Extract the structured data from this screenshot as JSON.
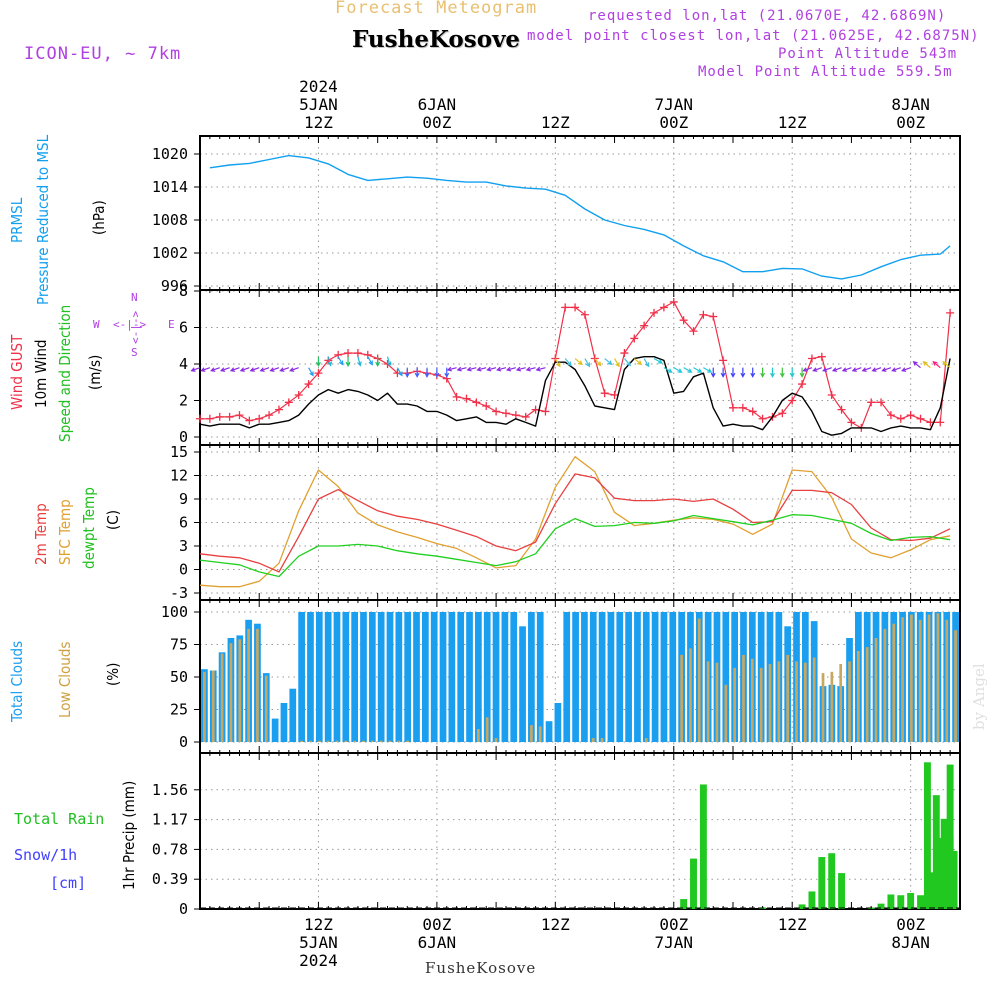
{
  "header": {
    "product": "Forecast Meteogram",
    "location": "FusheKosove",
    "model": "ICON-EU, ~ 7km",
    "requested": "requested lon,lat (21.0670E, 42.6869N)",
    "closest": "model point closest lon,lat (21.0625E, 42.6875N)",
    "point_altitude": "Point Altitude 543m",
    "model_altitude": "Model Point Altitude 559.5m",
    "footer_location": "FusheKosove",
    "credit": "by Angel"
  },
  "time_axis": {
    "top": [
      {
        "hour": 12,
        "lines": [
          "2024",
          "5JAN",
          "12Z"
        ]
      },
      {
        "hour": 24,
        "lines": [
          "6JAN",
          "00Z"
        ]
      },
      {
        "hour": 36,
        "lines": [
          "12Z"
        ]
      },
      {
        "hour": 48,
        "lines": [
          "7JAN",
          "00Z"
        ]
      },
      {
        "hour": 60,
        "lines": [
          "12Z"
        ]
      },
      {
        "hour": 72,
        "lines": [
          "8JAN",
          "00Z"
        ]
      }
    ],
    "bottom": [
      {
        "hour": 12,
        "lines": [
          "12Z",
          "5JAN",
          "2024"
        ]
      },
      {
        "hour": 24,
        "lines": [
          "00Z",
          "6JAN"
        ]
      },
      {
        "hour": 36,
        "lines": [
          "12Z"
        ]
      },
      {
        "hour": 48,
        "lines": [
          "00Z",
          "7JAN"
        ]
      },
      {
        "hour": 60,
        "lines": [
          "12Z"
        ]
      },
      {
        "hour": 72,
        "lines": [
          "00Z",
          "8JAN"
        ]
      }
    ]
  },
  "panel_labels": {
    "pressure": {
      "name": "PRMSL",
      "desc": "Pressure Reduced to MSL",
      "unit": "(hPa)"
    },
    "wind": {
      "gust": "Wind GUST",
      "wind10": "10m Wind",
      "speed": "Speed and Direction",
      "unit": "(m/s)",
      "compass": {
        "n": "N",
        "s": "S",
        "w": "W",
        "e": "E",
        "arrow_left": "<-|->",
        "arrow_v": "<-|->"
      }
    },
    "temp": {
      "t2m": "2m Temp",
      "sfc": "SFC Temp",
      "dew": "dewpt Temp",
      "unit": "(C)"
    },
    "clouds": {
      "total": "Total Clouds",
      "low": "Low Clouds",
      "unit": "(%)"
    },
    "precip": {
      "rain": "Total  Rain",
      "snow": "Snow/1h",
      "snow_unit": "[cm]",
      "axis": "1hr Precip (mm)"
    }
  },
  "colors": {
    "pressure": "#10a0f0",
    "gust": "#f03048",
    "wind10": "#000000",
    "temp2m": "#e84040",
    "sfc": "#e0a030",
    "dew": "#20d020",
    "total_cloud": "#1a9ff0",
    "low_cloud": "#c8a860",
    "rain": "#20c820",
    "snow": "#4040ff",
    "label_purple": "#b040e0",
    "title_gold": "#e8c070"
  },
  "chart_data": [
    {
      "type": "line",
      "title": "PRMSL Pressure Reduced to MSL",
      "ylabel": "hPa",
      "ylim": [
        996,
        1022
      ],
      "yticks": [
        "1020",
        "1014",
        "1008",
        "1002",
        "996"
      ],
      "x": [
        1,
        3,
        5,
        7,
        9,
        11,
        13,
        15,
        17,
        19,
        21,
        23,
        25,
        27,
        29,
        31,
        33,
        35,
        37,
        39,
        41,
        43,
        45,
        47,
        49,
        51,
        53,
        55,
        57,
        59,
        61,
        63,
        65,
        67,
        69,
        71,
        73,
        75,
        76
      ],
      "values": [
        1017.5,
        1018,
        1018.3,
        1019,
        1019.7,
        1019.3,
        1018.2,
        1016.3,
        1015.2,
        1015.5,
        1015.8,
        1015.6,
        1015.2,
        1014.9,
        1014.9,
        1014.2,
        1013.8,
        1013.6,
        1012.5,
        1010,
        1008,
        1007,
        1006.3,
        1005.3,
        1003.3,
        1001.5,
        1000.4,
        998.6,
        998.6,
        999.2,
        999.1,
        997.8,
        997.3,
        998,
        999.5,
        1000.8,
        1001.6,
        1001.8,
        1003.3
      ]
    },
    {
      "type": "line",
      "title": "Wind GUST / 10m Wind Speed and Direction",
      "ylabel": "m/s",
      "ylim": [
        0,
        8
      ],
      "yticks": [
        "8",
        "6",
        "4",
        "2",
        "0"
      ],
      "x": [
        0,
        1,
        2,
        3,
        4,
        5,
        6,
        7,
        8,
        9,
        10,
        11,
        12,
        13,
        14,
        15,
        16,
        17,
        18,
        19,
        20,
        21,
        22,
        23,
        24,
        25,
        26,
        27,
        28,
        29,
        30,
        31,
        32,
        33,
        34,
        35,
        36,
        37,
        38,
        39,
        40,
        41,
        42,
        43,
        44,
        45,
        46,
        47,
        48,
        49,
        50,
        51,
        52,
        53,
        54,
        55,
        56,
        57,
        58,
        59,
        60,
        61,
        62,
        63,
        64,
        65,
        66,
        67,
        68,
        69,
        70,
        71,
        72,
        73,
        74,
        75,
        76
      ],
      "series": [
        {
          "name": "Wind GUST",
          "values": [
            1,
            1,
            1.1,
            1.1,
            1.2,
            0.9,
            1,
            1.2,
            1.5,
            1.9,
            2.3,
            2.9,
            3.5,
            4.2,
            4.5,
            4.6,
            4.6,
            4.5,
            4.3,
            4,
            3.5,
            3.5,
            3.6,
            3.5,
            3.4,
            3.2,
            2.2,
            2.1,
            1.9,
            1.7,
            1.4,
            1.3,
            1.2,
            1.1,
            1.5,
            1.4,
            4.3,
            7.1,
            7.1,
            6.7,
            4.3,
            2.4,
            2.3,
            4.6,
            5.4,
            6.1,
            6.8,
            7.1,
            7.4,
            6.4,
            5.8,
            6.7,
            6.6,
            4.2,
            1.6,
            1.6,
            1.4,
            1,
            1.1,
            1.3,
            2,
            2.9,
            4.3,
            4.4,
            2.3,
            1.5,
            0.8,
            0.5,
            1.9,
            1.9,
            1.2,
            1,
            1.2,
            1,
            0.8,
            0.8,
            6.8
          ]
        },
        {
          "name": "10m Wind",
          "values": [
            0.7,
            0.6,
            0.7,
            0.7,
            0.7,
            0.5,
            0.7,
            0.7,
            0.8,
            0.9,
            1.2,
            1.8,
            2.3,
            2.6,
            2.4,
            2.6,
            2.5,
            2.3,
            2,
            2.4,
            1.8,
            1.8,
            1.7,
            1.4,
            1.4,
            1.2,
            0.9,
            1,
            1.1,
            0.8,
            0.8,
            0.7,
            1,
            0.8,
            0.6,
            3.1,
            4.1,
            4.1,
            3.7,
            2.8,
            1.7,
            1.6,
            1.5,
            3.7,
            4.3,
            4.4,
            4.4,
            4.2,
            2.4,
            2.5,
            3.3,
            3.5,
            1.6,
            0.6,
            0.7,
            0.6,
            0.6,
            0.4,
            1.1,
            2,
            2.4,
            2.2,
            1.4,
            0.3,
            0.1,
            0.2,
            0.5,
            0.5,
            0.5,
            0.3,
            0.5,
            0.6,
            0.5,
            0.5,
            0.4,
            1.6,
            4.3
          ]
        }
      ]
    },
    {
      "type": "line",
      "title": "2m Temp / SFC Temp / dewpt Temp",
      "ylabel": "C",
      "ylim": [
        -3,
        15
      ],
      "yticks": [
        "15",
        "12",
        "9",
        "6",
        "3",
        "0",
        "-3"
      ],
      "x": [
        0,
        2,
        4,
        6,
        8,
        10,
        12,
        14,
        16,
        18,
        20,
        22,
        24,
        26,
        28,
        30,
        32,
        34,
        36,
        38,
        40,
        42,
        44,
        46,
        48,
        50,
        52,
        54,
        56,
        58,
        60,
        62,
        64,
        66,
        68,
        70,
        72,
        74,
        76
      ],
      "series": [
        {
          "name": "2m Temp",
          "values": [
            2,
            1.7,
            1.5,
            0.8,
            -0.3,
            4.2,
            9,
            10.2,
            8.8,
            7.5,
            6.8,
            6.4,
            5.8,
            5,
            4.2,
            3,
            2.4,
            3.5,
            8.4,
            12.2,
            11.7,
            9.1,
            8.8,
            8.8,
            9,
            8.7,
            9,
            7.7,
            6,
            6.1,
            10.1,
            10.1,
            9.8,
            8.3,
            5.3,
            3.8,
            3.7,
            4,
            5.2
          ]
        },
        {
          "name": "SFC Temp",
          "values": [
            -2,
            -2.2,
            -2.2,
            -1.5,
            0.8,
            7.5,
            12.7,
            10.6,
            7.2,
            5.7,
            4.8,
            4.1,
            3.3,
            2.7,
            1.5,
            0.2,
            0.5,
            3.9,
            10.5,
            14.4,
            12.5,
            7.3,
            5.6,
            5.9,
            6.3,
            6.6,
            6.4,
            5.8,
            4.5,
            5.8,
            12.7,
            12.5,
            9.2,
            3.9,
            2.1,
            1.5,
            2.5,
            3.8,
            4.3
          ]
        },
        {
          "name": "dewpt Temp",
          "values": [
            1.2,
            0.9,
            0.6,
            -0.3,
            -0.9,
            1.7,
            3,
            3,
            3.2,
            3,
            2.4,
            2,
            1.7,
            1.3,
            0.9,
            0.5,
            1,
            2,
            5.2,
            6.5,
            5.5,
            5.6,
            6,
            5.9,
            6.2,
            6.9,
            6.5,
            6.1,
            5.7,
            6.3,
            7,
            6.9,
            6.4,
            5.9,
            4.6,
            3.7,
            4.1,
            4.2,
            3.8
          ]
        }
      ]
    },
    {
      "type": "bar",
      "title": "Total Clouds / Low Clouds",
      "ylabel": "%",
      "ylim": [
        0,
        100
      ],
      "yticks": [
        "100",
        "75",
        "50",
        "25",
        "0"
      ],
      "categories_hours": "0..76 hourly",
      "series": [
        {
          "name": "Total Clouds",
          "values": [
            56,
            55,
            69,
            80,
            82,
            94,
            91,
            53,
            18,
            30,
            41,
            100,
            100,
            100,
            100,
            100,
            100,
            100,
            100,
            100,
            100,
            100,
            100,
            100,
            100,
            100,
            100,
            100,
            100,
            100,
            100,
            100,
            100,
            100,
            100,
            100,
            89,
            100,
            100,
            16,
            30,
            100,
            100,
            100,
            100,
            100,
            100,
            100,
            100,
            100,
            100,
            100,
            100,
            100,
            100,
            100,
            100,
            100,
            100,
            100,
            100,
            100,
            100,
            100,
            100,
            100,
            89,
            100,
            100,
            93,
            43,
            44,
            43,
            80,
            100,
            100,
            100,
            100,
            100,
            100,
            100,
            100,
            100,
            100,
            100,
            100
          ]
        },
        {
          "name": "Low Clouds",
          "values": [
            54,
            55,
            68,
            76,
            79,
            87,
            87,
            51,
            0,
            0,
            0,
            1,
            1,
            1,
            1,
            1,
            1,
            1,
            1,
            1,
            1,
            1,
            1,
            1,
            0,
            0,
            0,
            0,
            0,
            0,
            0,
            10,
            19,
            3,
            0,
            0,
            0,
            13,
            12,
            0,
            0,
            0,
            0,
            0,
            3,
            3,
            0,
            0,
            0,
            0,
            3,
            0,
            0,
            0,
            67,
            72,
            95,
            62,
            61,
            44,
            57,
            67,
            64,
            57,
            60,
            62,
            67,
            62,
            61,
            65,
            53,
            54,
            60,
            62,
            70,
            73,
            80,
            87,
            91,
            96,
            98,
            94,
            98,
            99,
            94,
            86
          ]
        }
      ]
    },
    {
      "type": "bar",
      "title": "1hr Precip (mm)",
      "ylabel": "1hr Precip (mm)",
      "ylim": [
        0,
        1.95
      ],
      "yticks": [
        "1.56",
        "1.17",
        "0.78",
        "0.39",
        "0"
      ],
      "series": [
        {
          "name": "Total Rain",
          "hours": [
            49,
            50,
            51,
            57,
            61,
            62,
            63,
            64,
            65,
            68,
            69,
            70,
            71,
            72,
            73,
            74,
            75,
            76
          ],
          "values": [
            0.13,
            0.66,
            1.63,
            0.02,
            0.06,
            0.23,
            0.68,
            0.73,
            0.47,
            0.02,
            0.07,
            0.19,
            0.18,
            0.21,
            0.18,
            0.48,
            0.93,
            1.89
          ],
          "extra": [
            {
              "hour": 73.7,
              "v": 1.92
            },
            {
              "hour": 74.6,
              "v": 1.49
            },
            {
              "hour": 75.4,
              "v": 1.18
            },
            {
              "hour": 76,
              "v": 0.95
            },
            {
              "hour": 76.4,
              "v": 0.76
            }
          ]
        }
      ]
    }
  ]
}
